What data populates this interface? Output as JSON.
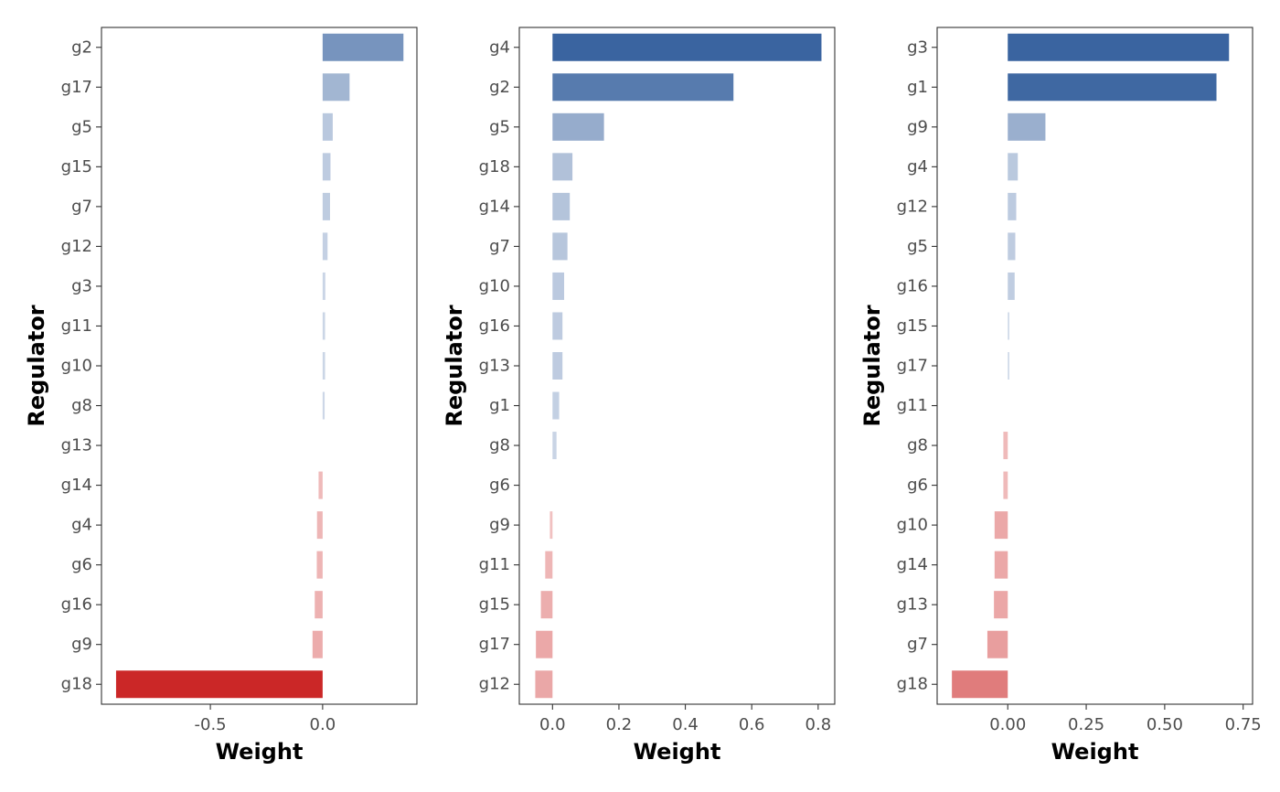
{
  "colors": {
    "positive": "#3a64a0",
    "negative": "#cb2727",
    "neutral": "#ffffff",
    "frame": "#333333",
    "tick_text": "#4d4d4d"
  },
  "chart_data": [
    {
      "type": "bar",
      "orientation": "horizontal",
      "xlabel": "Weight",
      "ylabel": "Regulator",
      "categories": [
        "g2",
        "g17",
        "g5",
        "g15",
        "g7",
        "g12",
        "g3",
        "g11",
        "g10",
        "g8",
        "g13",
        "g14",
        "g4",
        "g6",
        "g16",
        "g9",
        "g18"
      ],
      "values": [
        0.36,
        0.12,
        0.045,
        0.035,
        0.033,
        0.022,
        0.012,
        0.011,
        0.011,
        0.009,
        0.0,
        -0.018,
        -0.025,
        -0.026,
        -0.035,
        -0.045,
        -0.92
      ],
      "xlim": [
        -0.985,
        0.42
      ],
      "xticks": [
        -0.5,
        0.0
      ],
      "xtick_labels": [
        "-0.5",
        "0.0"
      ],
      "grid": false,
      "legend": "none"
    },
    {
      "type": "bar",
      "orientation": "horizontal",
      "xlabel": "Weight",
      "ylabel": "Regulator",
      "categories": [
        "g4",
        "g2",
        "g5",
        "g18",
        "g14",
        "g7",
        "g10",
        "g16",
        "g13",
        "g1",
        "g8",
        "g6",
        "g9",
        "g11",
        "g15",
        "g17",
        "g12"
      ],
      "values": [
        0.81,
        0.545,
        0.155,
        0.06,
        0.052,
        0.045,
        0.035,
        0.03,
        0.03,
        0.02,
        0.012,
        0.0,
        -0.008,
        -0.022,
        -0.035,
        -0.05,
        -0.052
      ],
      "xlim": [
        -0.1,
        0.85
      ],
      "xticks": [
        0.0,
        0.2,
        0.4,
        0.6,
        0.8
      ],
      "xtick_labels": [
        "0.0",
        "0.2",
        "0.4",
        "0.6",
        "0.8"
      ],
      "grid": false,
      "legend": "none"
    },
    {
      "type": "bar",
      "orientation": "horizontal",
      "xlabel": "Weight",
      "ylabel": "Regulator",
      "categories": [
        "g3",
        "g1",
        "g9",
        "g4",
        "g12",
        "g5",
        "g16",
        "g15",
        "g17",
        "g11",
        "g8",
        "g6",
        "g10",
        "g14",
        "g13",
        "g7",
        "g18"
      ],
      "values": [
        0.705,
        0.665,
        0.12,
        0.032,
        0.027,
        0.024,
        0.022,
        0.005,
        0.005,
        0.0,
        -0.014,
        -0.014,
        -0.042,
        -0.042,
        -0.044,
        -0.065,
        -0.178
      ],
      "xlim": [
        -0.225,
        0.78
      ],
      "xticks": [
        0.0,
        0.25,
        0.5,
        0.75
      ],
      "xtick_labels": [
        "0.00",
        "0.25",
        "0.50",
        "0.75"
      ],
      "grid": false,
      "legend": "none"
    }
  ]
}
